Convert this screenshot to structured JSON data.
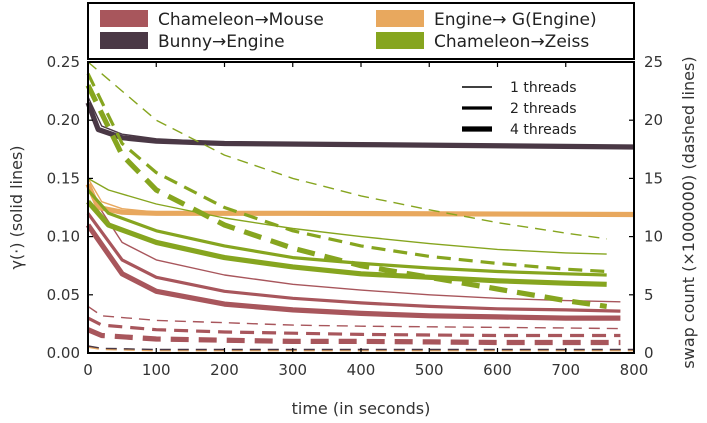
{
  "chart_data": {
    "type": "line",
    "xlabel": "time (in seconds)",
    "ylabel_left": "γ(·) (solid lines)",
    "ylabel_right": "swap count (×1000000) (dashed lines)",
    "xlim": [
      0,
      800
    ],
    "ylim_left": [
      0,
      0.25
    ],
    "ylim_right": [
      0,
      25
    ],
    "x_ticks": [
      "0",
      "100",
      "200",
      "300",
      "400",
      "500",
      "600",
      "700",
      "800"
    ],
    "y_ticks_left": [
      "0.00",
      "0.05",
      "0.10",
      "0.15",
      "0.20",
      "0.25"
    ],
    "y_ticks_right": [
      "0",
      "5",
      "10",
      "15",
      "20",
      "25"
    ],
    "grid": false,
    "legend": {
      "placement": "top",
      "entries": [
        {
          "label": "Chameleon→Mouse",
          "color": "#a8565c"
        },
        {
          "label": "Engine→ G(Engine)",
          "color": "#e8a85e"
        },
        {
          "label": "Bunny→Engine",
          "color": "#4a3845"
        },
        {
          "label": "Chameleon→Zeiss",
          "color": "#86a51f"
        }
      ]
    },
    "thread_legend": {
      "placement": "top-right",
      "entries": [
        {
          "label": "1 threads",
          "width": 1
        },
        {
          "label": "2 threads",
          "width": 2
        },
        {
          "label": "4 threads",
          "width": 4
        }
      ]
    },
    "series": [
      {
        "pair": "Chameleon→Mouse",
        "threads": 1,
        "axis": "left",
        "style": "solid",
        "color": "#a8565c",
        "points": [
          [
            0,
            0.14
          ],
          [
            50,
            0.095
          ],
          [
            100,
            0.08
          ],
          [
            200,
            0.067
          ],
          [
            300,
            0.059
          ],
          [
            400,
            0.054
          ],
          [
            500,
            0.05
          ],
          [
            600,
            0.047
          ],
          [
            700,
            0.045
          ],
          [
            780,
            0.044
          ]
        ]
      },
      {
        "pair": "Chameleon→Mouse",
        "threads": 2,
        "axis": "left",
        "style": "solid",
        "color": "#a8565c",
        "points": [
          [
            0,
            0.12
          ],
          [
            50,
            0.08
          ],
          [
            100,
            0.065
          ],
          [
            200,
            0.053
          ],
          [
            300,
            0.047
          ],
          [
            400,
            0.043
          ],
          [
            500,
            0.04
          ],
          [
            600,
            0.038
          ],
          [
            700,
            0.037
          ],
          [
            780,
            0.036
          ]
        ]
      },
      {
        "pair": "Chameleon→Mouse",
        "threads": 4,
        "axis": "left",
        "style": "solid",
        "color": "#a8565c",
        "points": [
          [
            0,
            0.11
          ],
          [
            50,
            0.068
          ],
          [
            100,
            0.053
          ],
          [
            200,
            0.042
          ],
          [
            300,
            0.037
          ],
          [
            400,
            0.034
          ],
          [
            500,
            0.032
          ],
          [
            600,
            0.031
          ],
          [
            700,
            0.03
          ],
          [
            780,
            0.03
          ]
        ]
      },
      {
        "pair": "Chameleon→Mouse",
        "threads": 1,
        "axis": "right",
        "style": "dashed",
        "color": "#a8565c",
        "points": [
          [
            0,
            4.0
          ],
          [
            20,
            3.2
          ],
          [
            100,
            2.8
          ],
          [
            200,
            2.6
          ],
          [
            300,
            2.4
          ],
          [
            400,
            2.3
          ],
          [
            500,
            2.25
          ],
          [
            600,
            2.2
          ],
          [
            700,
            2.15
          ],
          [
            780,
            2.1
          ]
        ]
      },
      {
        "pair": "Chameleon→Mouse",
        "threads": 2,
        "axis": "right",
        "style": "dashed",
        "color": "#a8565c",
        "points": [
          [
            0,
            3.0
          ],
          [
            20,
            2.4
          ],
          [
            100,
            2.0
          ],
          [
            200,
            1.8
          ],
          [
            300,
            1.7
          ],
          [
            400,
            1.6
          ],
          [
            500,
            1.55
          ],
          [
            600,
            1.5
          ],
          [
            700,
            1.5
          ],
          [
            780,
            1.5
          ]
        ]
      },
      {
        "pair": "Chameleon→Mouse",
        "threads": 4,
        "axis": "right",
        "style": "dashed",
        "color": "#a8565c",
        "points": [
          [
            0,
            2.0
          ],
          [
            20,
            1.5
          ],
          [
            100,
            1.2
          ],
          [
            200,
            1.1
          ],
          [
            300,
            1.0
          ],
          [
            400,
            1.0
          ],
          [
            500,
            0.95
          ],
          [
            600,
            0.9
          ],
          [
            700,
            0.9
          ],
          [
            780,
            0.9
          ]
        ]
      },
      {
        "pair": "Engine→ G(Engine)",
        "threads": 1,
        "axis": "left",
        "style": "solid",
        "color": "#e8a85e",
        "points": [
          [
            0,
            0.15
          ],
          [
            20,
            0.13
          ],
          [
            50,
            0.124
          ],
          [
            100,
            0.121
          ],
          [
            200,
            0.12
          ],
          [
            400,
            0.12
          ],
          [
            600,
            0.12
          ],
          [
            800,
            0.12
          ]
        ]
      },
      {
        "pair": "Engine→ G(Engine)",
        "threads": 4,
        "axis": "left",
        "style": "solid",
        "color": "#e8a85e",
        "points": [
          [
            0,
            0.145
          ],
          [
            15,
            0.125
          ],
          [
            50,
            0.121
          ],
          [
            100,
            0.12
          ],
          [
            300,
            0.12
          ],
          [
            800,
            0.119
          ]
        ]
      },
      {
        "pair": "Engine→ G(Engine)",
        "threads": 1,
        "axis": "right",
        "style": "dashed",
        "color": "#e8a85e",
        "points": [
          [
            0,
            0.5
          ],
          [
            20,
            0.3
          ],
          [
            100,
            0.2
          ],
          [
            800,
            0.2
          ]
        ]
      },
      {
        "pair": "Bunny→Engine",
        "threads": 1,
        "axis": "left",
        "style": "solid",
        "color": "#4a3845",
        "points": [
          [
            0,
            0.22
          ],
          [
            20,
            0.195
          ],
          [
            50,
            0.188
          ],
          [
            100,
            0.184
          ],
          [
            200,
            0.181
          ],
          [
            300,
            0.18
          ],
          [
            500,
            0.179
          ],
          [
            800,
            0.178
          ]
        ]
      },
      {
        "pair": "Bunny→Engine",
        "threads": 4,
        "axis": "left",
        "style": "solid",
        "color": "#4a3845",
        "points": [
          [
            0,
            0.215
          ],
          [
            15,
            0.192
          ],
          [
            50,
            0.185
          ],
          [
            100,
            0.182
          ],
          [
            200,
            0.18
          ],
          [
            400,
            0.179
          ],
          [
            800,
            0.177
          ]
        ]
      },
      {
        "pair": "Bunny→Engine",
        "threads": 1,
        "axis": "right",
        "style": "dashed",
        "color": "#4a3845",
        "points": [
          [
            0,
            0.6
          ],
          [
            20,
            0.4
          ],
          [
            100,
            0.3
          ],
          [
            800,
            0.3
          ]
        ]
      },
      {
        "pair": "Chameleon→Zeiss",
        "threads": 1,
        "axis": "left",
        "style": "solid",
        "color": "#86a51f",
        "points": [
          [
            0,
            0.15
          ],
          [
            30,
            0.14
          ],
          [
            100,
            0.128
          ],
          [
            200,
            0.116
          ],
          [
            300,
            0.107
          ],
          [
            400,
            0.1
          ],
          [
            500,
            0.094
          ],
          [
            600,
            0.089
          ],
          [
            700,
            0.086
          ],
          [
            760,
            0.085
          ]
        ]
      },
      {
        "pair": "Chameleon→Zeiss",
        "threads": 2,
        "axis": "left",
        "style": "solid",
        "color": "#86a51f",
        "points": [
          [
            0,
            0.14
          ],
          [
            30,
            0.12
          ],
          [
            100,
            0.105
          ],
          [
            200,
            0.092
          ],
          [
            300,
            0.082
          ],
          [
            400,
            0.077
          ],
          [
            500,
            0.073
          ],
          [
            600,
            0.07
          ],
          [
            700,
            0.068
          ],
          [
            760,
            0.067
          ]
        ]
      },
      {
        "pair": "Chameleon→Zeiss",
        "threads": 4,
        "axis": "left",
        "style": "solid",
        "color": "#86a51f",
        "points": [
          [
            0,
            0.13
          ],
          [
            30,
            0.11
          ],
          [
            100,
            0.095
          ],
          [
            200,
            0.082
          ],
          [
            300,
            0.074
          ],
          [
            400,
            0.068
          ],
          [
            500,
            0.065
          ],
          [
            600,
            0.062
          ],
          [
            700,
            0.06
          ],
          [
            760,
            0.059
          ]
        ]
      },
      {
        "pair": "Chameleon→Zeiss",
        "threads": 1,
        "axis": "right",
        "style": "dashed",
        "color": "#86a51f",
        "points": [
          [
            0,
            25
          ],
          [
            100,
            20
          ],
          [
            200,
            17
          ],
          [
            300,
            15
          ],
          [
            400,
            13.5
          ],
          [
            500,
            12.3
          ],
          [
            600,
            11.2
          ],
          [
            700,
            10.3
          ],
          [
            760,
            9.8
          ]
        ]
      },
      {
        "pair": "Chameleon→Zeiss",
        "threads": 2,
        "axis": "right",
        "style": "dashed",
        "color": "#86a51f",
        "points": [
          [
            0,
            24
          ],
          [
            50,
            18
          ],
          [
            100,
            15.5
          ],
          [
            200,
            12.5
          ],
          [
            300,
            10.5
          ],
          [
            400,
            9.2
          ],
          [
            500,
            8.3
          ],
          [
            600,
            7.7
          ],
          [
            700,
            7.2
          ],
          [
            760,
            7.0
          ]
        ]
      },
      {
        "pair": "Chameleon→Zeiss",
        "threads": 4,
        "axis": "right",
        "style": "dashed",
        "color": "#86a51f",
        "points": [
          [
            0,
            23
          ],
          [
            50,
            17
          ],
          [
            100,
            14
          ],
          [
            200,
            11
          ],
          [
            300,
            9
          ],
          [
            400,
            7.5
          ],
          [
            500,
            6.5
          ],
          [
            600,
            5.5
          ],
          [
            700,
            4.5
          ],
          [
            760,
            4.0
          ]
        ]
      }
    ]
  }
}
